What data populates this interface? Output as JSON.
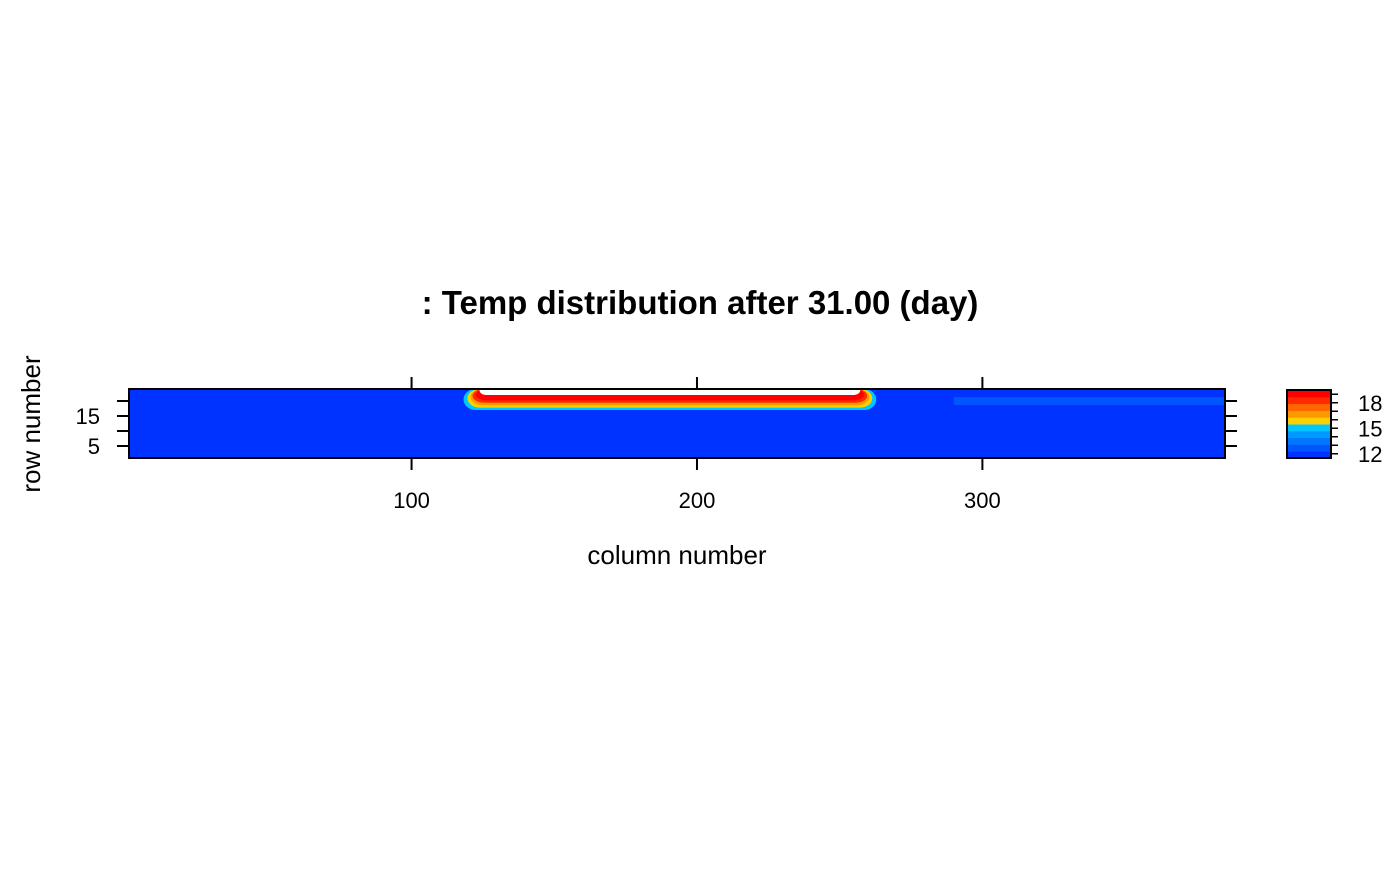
{
  "chart_data": {
    "type": "heatmap",
    "title": ": Temp distribution after 31.00 (day)",
    "xlabel": "column number",
    "ylabel": "row number",
    "xlim": [
      1,
      385
    ],
    "ylim": [
      1,
      24
    ],
    "xticks": [
      100,
      200,
      300
    ],
    "yticks": [
      5,
      10,
      15,
      20
    ],
    "ytick_labels": [
      "5",
      "15"
    ],
    "colorbar": {
      "range": [
        11.5,
        19.5
      ],
      "ticks": [
        12,
        13,
        14,
        15,
        16,
        17,
        18,
        19
      ],
      "tick_labels": [
        "12",
        "15",
        "18"
      ]
    },
    "background_value": 12.0,
    "far_field_value": 12.3,
    "warm_zone": {
      "col_start": 121,
      "col_end": 260,
      "row_top": 24,
      "row_bottom": 17,
      "inactive_rows_from_top": 2,
      "peak_value": 19.5
    },
    "colors": {
      "scale": [
        "#0033ff",
        "#0055ff",
        "#0077ff",
        "#0099ff",
        "#00c8ff",
        "#ffd000",
        "#ff9900",
        "#ff6600",
        "#ff2a00",
        "#ff0000"
      ],
      "inactive": "#ffffff",
      "frame": "#000000"
    }
  }
}
